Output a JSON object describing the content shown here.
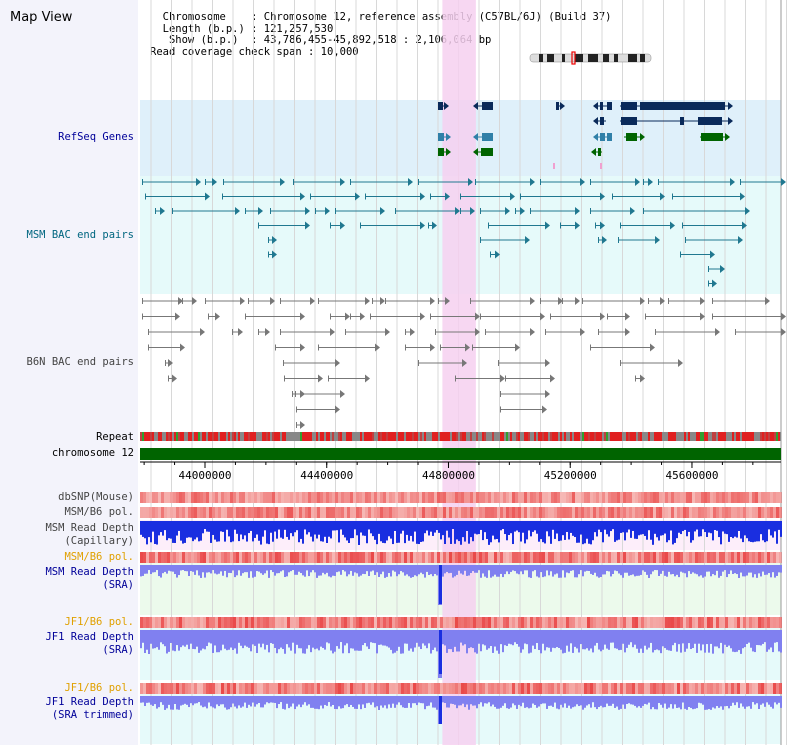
{
  "title": "Map View",
  "info": {
    "lines": [
      "  Chromosome    : Chromosome 12, reference assembly (C57BL/6J) (Build 37)",
      "  Length (b.p.) : 121,257,530",
      "   Show (b.p.)  : 43,786,455-45,892,518 : 2,106,064 bp",
      "Read coverage check span : 10,000"
    ]
  },
  "region": {
    "start": 43786455,
    "end": 45892518,
    "highlight_start": 44780000,
    "highlight_end": 44890000
  },
  "axis": {
    "ticks": [
      44000000,
      44400000,
      44800000,
      45200000,
      45600000
    ]
  },
  "tracks": [
    {
      "label": "RefSeq Genes",
      "color": "#000099"
    },
    {
      "label": "MSM BAC end pairs",
      "color": "#006680"
    },
    {
      "label": "B6N BAC end pairs",
      "color": "#444444"
    },
    {
      "label": "Repeat",
      "color": "#000000"
    },
    {
      "label": "chromosome 12",
      "color": "#000000"
    },
    {
      "label": "dbSNP(Mouse)",
      "color": "#444444"
    },
    {
      "label": "MSM/B6 pol.",
      "color": "#444444"
    },
    {
      "label": "MSM Read Depth",
      "color": "#444444"
    },
    {
      "label": "(Capillary)",
      "color": "#444444"
    },
    {
      "label": "MSM/B6 pol.",
      "color": "#e0a000"
    },
    {
      "label": "MSM Read Depth",
      "color": "#000099"
    },
    {
      "label": "(SRA)",
      "color": "#000099"
    },
    {
      "label": "JF1/B6 pol.",
      "color": "#e0a000"
    },
    {
      "label": "JF1 Read Depth",
      "color": "#000099"
    },
    {
      "label": "(SRA)",
      "color": "#000099"
    },
    {
      "label": "JF1/B6 pol.",
      "color": "#e0a000"
    },
    {
      "label": "JF1 Read Depth",
      "color": "#000099"
    },
    {
      "label": "(SRA trimmed)",
      "color": "#000099"
    }
  ],
  "colors": {
    "highlight": "#f6d0f0",
    "gene_dark": "#0a2a5a",
    "gene_mid": "#3080a8",
    "gene_green": "#006400",
    "msm_bac": "#207890",
    "b6n_bac": "#777777",
    "chrom": "#006400",
    "depth_blue": "#1a2ee0",
    "depth_light": "#8080f0",
    "pol_red": "#e84040"
  }
}
